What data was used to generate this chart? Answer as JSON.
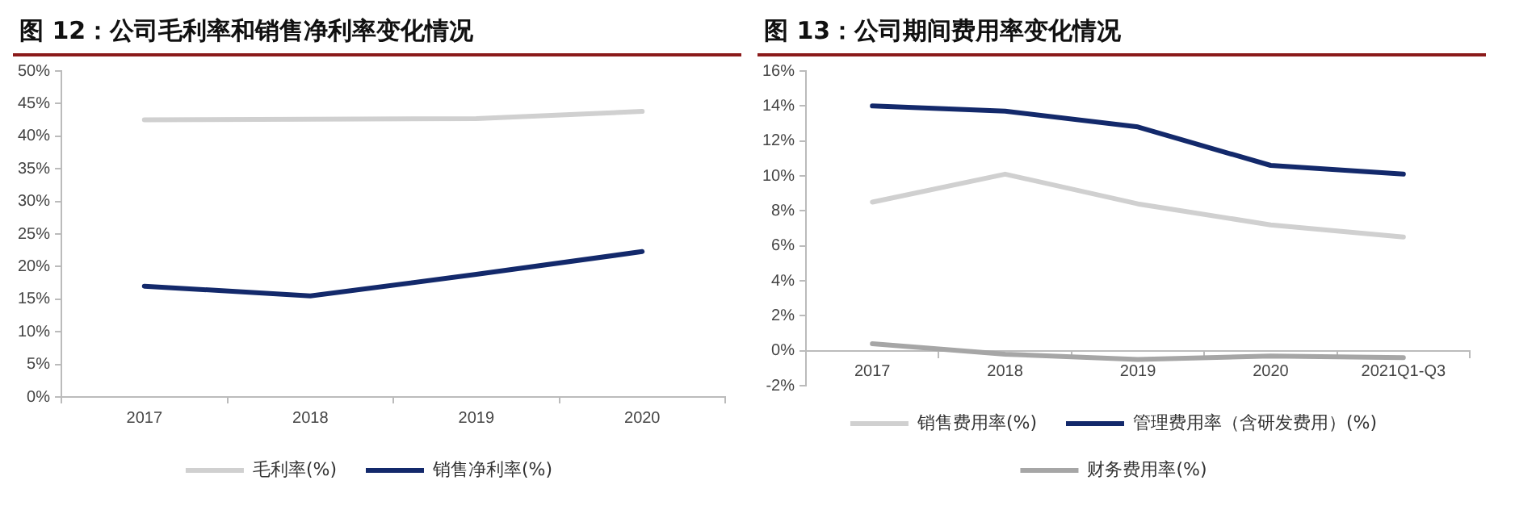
{
  "chart_data": [
    {
      "type": "line",
      "title": "图 12：公司毛利率和销售净利率变化情况",
      "categories": [
        "2017",
        "2018",
        "2019",
        "2020"
      ],
      "series": [
        {
          "name": "毛利率(%)",
          "color": "#d0d0d0",
          "values": [
            42.5,
            42.6,
            42.7,
            43.8
          ]
        },
        {
          "name": "销售净利率(%)",
          "color": "#13296b",
          "values": [
            17.0,
            15.5,
            18.8,
            22.3
          ]
        }
      ],
      "ylim": [
        0,
        50
      ],
      "yticks": [
        {
          "value": 0,
          "label": "0%"
        },
        {
          "value": 5,
          "label": "5%"
        },
        {
          "value": 10,
          "label": "10%"
        },
        {
          "value": 15,
          "label": "15%"
        },
        {
          "value": 20,
          "label": "20%"
        },
        {
          "value": 25,
          "label": "25%"
        },
        {
          "value": 30,
          "label": "30%"
        },
        {
          "value": 35,
          "label": "35%"
        },
        {
          "value": 40,
          "label": "40%"
        },
        {
          "value": 45,
          "label": "45%"
        },
        {
          "value": 50,
          "label": "50%"
        }
      ],
      "grid": false,
      "legend": "bottom",
      "marker": "none",
      "line_style": "solid"
    },
    {
      "type": "line",
      "title": "图 13：公司期间费用率变化情况",
      "categories": [
        "2017",
        "2018",
        "2019",
        "2020",
        "2021Q1-Q3"
      ],
      "series": [
        {
          "name": "销售费用率(%)",
          "color": "#d0d0d0",
          "values": [
            8.5,
            10.1,
            8.4,
            7.2,
            6.5
          ]
        },
        {
          "name": "管理费用率（含研发费用）(%)",
          "color": "#13296b",
          "values": [
            14.0,
            13.7,
            12.8,
            10.6,
            10.1
          ]
        },
        {
          "name": "财务费用率(%)",
          "color": "#a6a6a6",
          "values": [
            0.4,
            -0.2,
            -0.5,
            -0.3,
            -0.4
          ]
        }
      ],
      "ylim": [
        -2,
        16
      ],
      "yticks": [
        {
          "value": -2,
          "label": "-2%"
        },
        {
          "value": 0,
          "label": "0%"
        },
        {
          "value": 2,
          "label": "2%"
        },
        {
          "value": 4,
          "label": "4%"
        },
        {
          "value": 6,
          "label": "6%"
        },
        {
          "value": 8,
          "label": "8%"
        },
        {
          "value": 10,
          "label": "10%"
        },
        {
          "value": 12,
          "label": "12%"
        },
        {
          "value": 14,
          "label": "14%"
        },
        {
          "value": 16,
          "label": "16%"
        }
      ],
      "grid": false,
      "legend": "bottom",
      "marker": "none",
      "line_style": "solid"
    }
  ]
}
